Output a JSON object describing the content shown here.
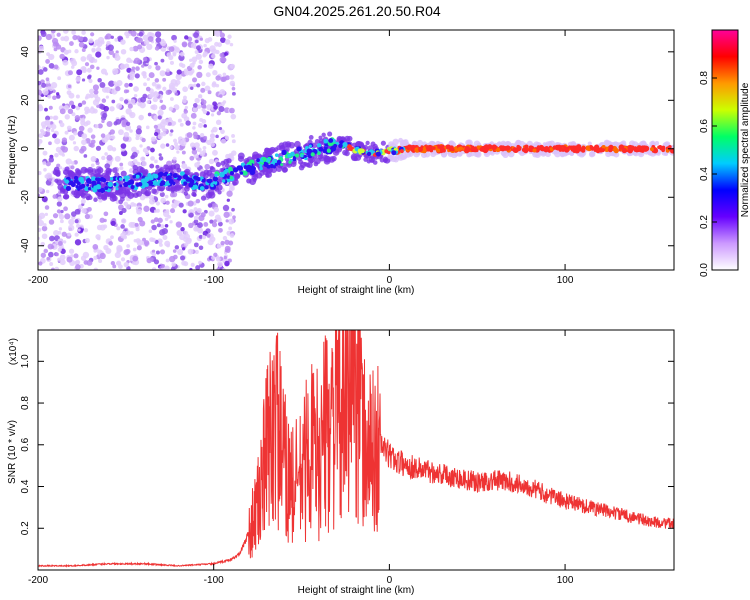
{
  "chart_data": [
    {
      "type": "heatmap",
      "title": "GN04.2025.261.20.50.R04",
      "xlabel": "Height of straight line (km)",
      "ylabel": "Frequency (Hz)",
      "xlim": [
        -200,
        162
      ],
      "ylim": [
        -50,
        49
      ],
      "xticks": [
        -200,
        -100,
        0,
        100
      ],
      "yticks": [
        -40,
        -20,
        0,
        20,
        40
      ],
      "colorbar": {
        "label": "Normalized spectral amplitude",
        "range": [
          0,
          1
        ],
        "ticks": [
          "0.0",
          "0.2",
          "0.4",
          "0.6",
          "0.8"
        ],
        "colors": [
          "#ffffff",
          "#cc99ff",
          "#6600ff",
          "#0000ff",
          "#00ccff",
          "#00ff66",
          "#ccff00",
          "#ff9900",
          "#ff0000",
          "#ff0099"
        ]
      },
      "ridge": {
        "x": [
          -185,
          -160,
          -140,
          -120,
          -105,
          -90,
          -70,
          -50,
          -35,
          -28,
          -20,
          -10,
          0,
          10,
          50,
          100,
          162
        ],
        "y": [
          -14,
          -15,
          -13,
          -12,
          -15,
          -10,
          -6,
          -2,
          1,
          2,
          0,
          -2,
          -1,
          0,
          0,
          0,
          0
        ]
      }
    },
    {
      "type": "line",
      "xlabel": "Height of straight line (km)",
      "ylabel": "SNR (10 * v/v)",
      "scale_label": "(x10⁴)",
      "xlim": [
        -200,
        162
      ],
      "ylim": [
        0,
        1.15
      ],
      "xticks": [
        -200,
        -100,
        0,
        100
      ],
      "yticks": [
        "0.2",
        "0.4",
        "0.6",
        "0.8",
        "1.0"
      ],
      "series": [
        {
          "color": "#ee3333",
          "x": [
            -200,
            -180,
            -160,
            -140,
            -120,
            -100,
            -95,
            -90,
            -85,
            -80,
            -75,
            -70,
            -65,
            -60,
            -55,
            -50,
            -45,
            -40,
            -35,
            -30,
            -25,
            -20,
            -18,
            -15,
            -10,
            -5,
            0,
            5,
            10,
            20,
            30,
            40,
            50,
            60,
            70,
            80,
            90,
            100,
            110,
            120,
            130,
            140,
            150,
            162
          ],
          "y": [
            0.02,
            0.02,
            0.03,
            0.03,
            0.02,
            0.03,
            0.04,
            0.05,
            0.08,
            0.18,
            0.3,
            0.55,
            0.75,
            0.5,
            0.4,
            0.45,
            0.6,
            0.55,
            0.7,
            0.8,
            0.75,
            1.1,
            0.9,
            0.6,
            0.55,
            0.6,
            0.55,
            0.52,
            0.5,
            0.48,
            0.46,
            0.44,
            0.42,
            0.43,
            0.42,
            0.4,
            0.36,
            0.33,
            0.31,
            0.29,
            0.27,
            0.25,
            0.23,
            0.22
          ]
        }
      ]
    }
  ]
}
